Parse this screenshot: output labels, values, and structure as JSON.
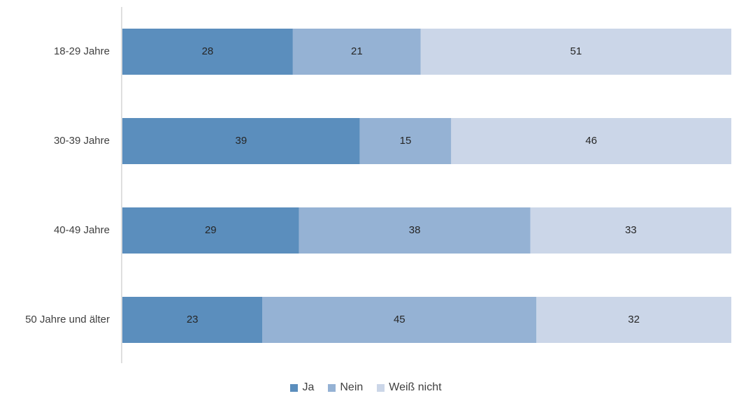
{
  "chart_data": {
    "type": "bar",
    "orientation": "horizontal",
    "stacked": true,
    "categories": [
      "18-29 Jahre",
      "30-39 Jahre",
      "40-49 Jahre",
      "50 Jahre und älter"
    ],
    "series": [
      {
        "name": "Ja",
        "values": [
          28,
          39,
          29,
          23
        ],
        "color": "#5b8ebd"
      },
      {
        "name": "Nein",
        "values": [
          21,
          15,
          38,
          45
        ],
        "color": "#95b2d4"
      },
      {
        "name": "Weiß nicht",
        "values": [
          51,
          46,
          33,
          32
        ],
        "color": "#cbd6e8"
      }
    ],
    "xlim": [
      0,
      100
    ],
    "grid": false,
    "legend_position": "bottom",
    "data_labels": true
  }
}
